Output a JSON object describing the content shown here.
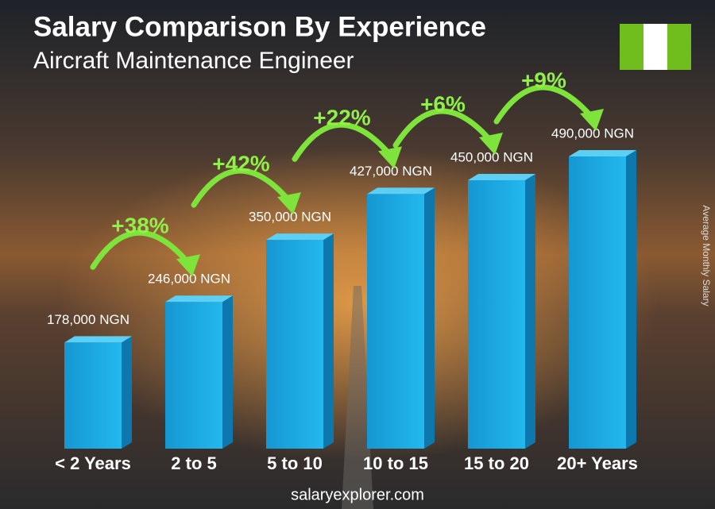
{
  "chart_data": {
    "type": "bar3d",
    "title": "Salary Comparison By Experience",
    "subtitle": "Aircraft Maintenance Engineer",
    "y_axis_label": "Average Monthly Salary",
    "categories": [
      "< 2 Years",
      "2 to 5",
      "5 to 10",
      "10 to 15",
      "15 to 20",
      "20+ Years"
    ],
    "values": [
      178000,
      246000,
      350000,
      427000,
      450000,
      490000
    ],
    "value_labels": [
      "178,000 NGN",
      "246,000 NGN",
      "350,000 NGN",
      "427,000 NGN",
      "450,000 NGN",
      "490,000 NGN"
    ],
    "growth_labels": [
      "+38%",
      "+42%",
      "+22%",
      "+6%",
      "+9%"
    ],
    "color": "#1aa9e0",
    "footer": "salaryexplorer.com"
  }
}
